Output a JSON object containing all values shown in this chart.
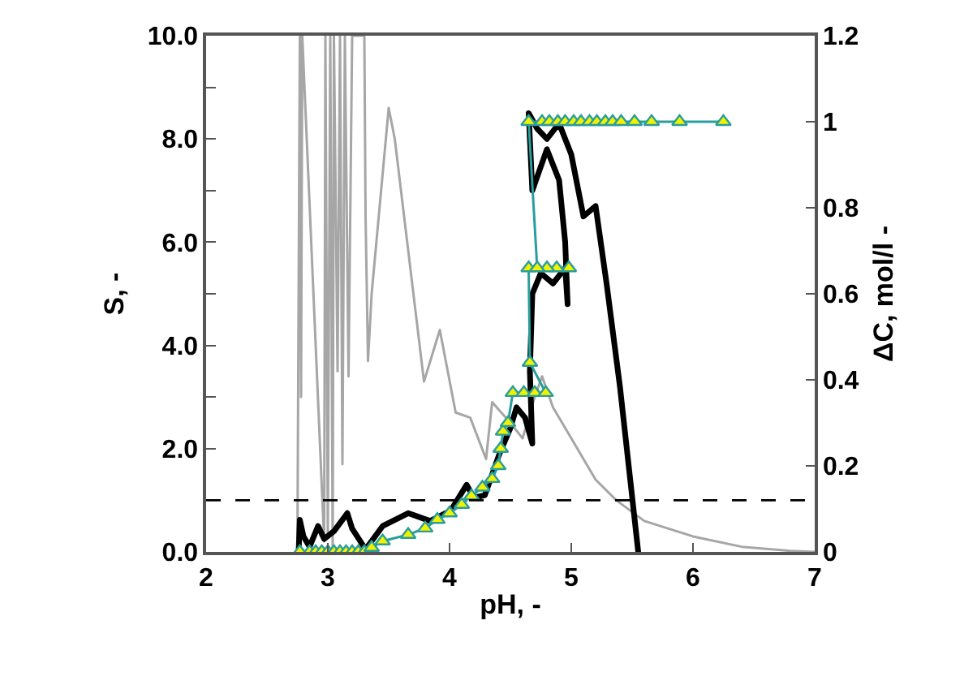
{
  "chart_data": {
    "type": "line",
    "xlabel": "pH, -",
    "ylabel": "S, -",
    "y2label": "ΔC, mol/l -",
    "xlim": [
      2,
      7
    ],
    "xticks": [
      2,
      3,
      4,
      5,
      6,
      7
    ],
    "ylim": [
      0,
      10
    ],
    "yticks": [
      {
        "value": 0,
        "label": "0.0"
      },
      {
        "value": 1,
        "label": null
      },
      {
        "value": 2,
        "label": "2.0"
      },
      {
        "value": 3,
        "label": null
      },
      {
        "value": 4,
        "label": "4.0"
      },
      {
        "value": 5,
        "label": null
      },
      {
        "value": 6,
        "label": "6.0"
      },
      {
        "value": 7,
        "label": null
      },
      {
        "value": 8,
        "label": "8.0"
      },
      {
        "value": 9,
        "label": null
      },
      {
        "value": 10,
        "label": "10.0"
      }
    ],
    "y2lim": [
      0,
      1.2
    ],
    "y2ticks": [
      0,
      0.2,
      0.4,
      0.6,
      0.8,
      1,
      1.2
    ],
    "ref_lines": [
      {
        "axis": "y",
        "value": 1,
        "color": "#000000",
        "line_style": "dashed"
      }
    ],
    "series": [
      {
        "color": "#a6a6a6",
        "marker": "none",
        "x": [
          2.75,
          2.77,
          2.78,
          2.79,
          2.97,
          2.98,
          3.0,
          3.02,
          3.04,
          3.05,
          3.08,
          3.1,
          3.12,
          3.14,
          3.17,
          3.2,
          3.3,
          3.31,
          3.33,
          3.36,
          3.5,
          3.55,
          3.79,
          3.92,
          4.05,
          4.17,
          4.3,
          4.35,
          4.5,
          4.6,
          4.7,
          4.76,
          4.85,
          5.0,
          5.2,
          5.37,
          5.6,
          6.0,
          6.4,
          6.8,
          7.0
        ],
        "values": [
          0,
          10,
          3,
          10,
          0.2,
          10,
          0.3,
          10,
          0,
          10,
          3.5,
          10,
          1.7,
          10,
          3.4,
          10,
          10,
          6.5,
          3.7,
          5,
          8.6,
          8,
          3.3,
          4.3,
          2.7,
          2.6,
          1.8,
          2.9,
          2.5,
          2.2,
          3.0,
          3.4,
          2.8,
          2.2,
          1.4,
          1.0,
          0.6,
          0.3,
          0.1,
          0.02,
          0
        ]
      },
      {
        "color": "#000000",
        "marker": "none",
        "x": [
          2.76,
          2.77,
          2.8,
          2.85,
          2.92,
          2.97,
          3.05,
          3.16,
          3.2,
          3.31,
          3.45,
          3.66,
          3.84,
          4.01,
          4.14,
          4.2,
          4.29,
          4.41,
          4.5,
          4.55,
          4.62,
          4.68,
          4.66,
          4.68,
          4.75,
          4.85,
          4.95,
          4.97,
          4.95,
          4.9,
          4.8,
          4.68,
          4.65,
          4.72,
          4.8,
          4.9,
          5.0,
          5.1,
          5.2,
          5.29,
          5.4,
          5.55
        ],
        "values": [
          0,
          0.62,
          0.3,
          0.1,
          0.5,
          0.25,
          0.4,
          0.75,
          0.45,
          0.05,
          0.5,
          0.75,
          0.6,
          0.8,
          1.3,
          1.05,
          1.1,
          1.9,
          2.4,
          2.8,
          2.6,
          2.1,
          3.5,
          5.0,
          5.4,
          5.2,
          5.5,
          4.8,
          6.0,
          7.2,
          7.8,
          7.0,
          8.5,
          8.2,
          8.0,
          8.3,
          7.7,
          6.5,
          6.7,
          5.2,
          3.2,
          0
        ]
      },
      {
        "color": "#2a9d9d",
        "marker": "triangle",
        "axis": "y2",
        "x": [
          2.77,
          2.85,
          2.9,
          2.95,
          3.0,
          3.05,
          3.1,
          3.15,
          3.2,
          3.25,
          3.3,
          3.36,
          3.45,
          3.66,
          3.8,
          3.9,
          4.0,
          4.1,
          4.18,
          4.27,
          4.35,
          4.4,
          4.42,
          4.44,
          4.48,
          4.52,
          4.61,
          4.7,
          4.79,
          4.66,
          4.65,
          4.98,
          4.88,
          4.8,
          4.72,
          4.65,
          4.76,
          4.82,
          4.89,
          4.95,
          5.02,
          5.08,
          5.15,
          5.21,
          5.28,
          5.34,
          5.41,
          5.52,
          5.66,
          5.89,
          6.25
        ],
        "values": [
          0,
          0,
          0,
          0,
          0,
          0,
          0,
          0,
          0,
          0,
          0,
          0.01,
          0.025,
          0.04,
          0.055,
          0.075,
          0.09,
          0.11,
          0.13,
          0.15,
          0.17,
          0.2,
          0.24,
          0.28,
          0.3,
          0.37,
          0.37,
          0.37,
          0.37,
          0.44,
          0.66,
          0.66,
          0.66,
          0.66,
          0.66,
          1,
          1,
          1,
          1,
          1,
          1,
          1,
          1,
          1,
          1,
          1,
          1,
          1,
          1,
          1,
          1
        ]
      }
    ]
  }
}
